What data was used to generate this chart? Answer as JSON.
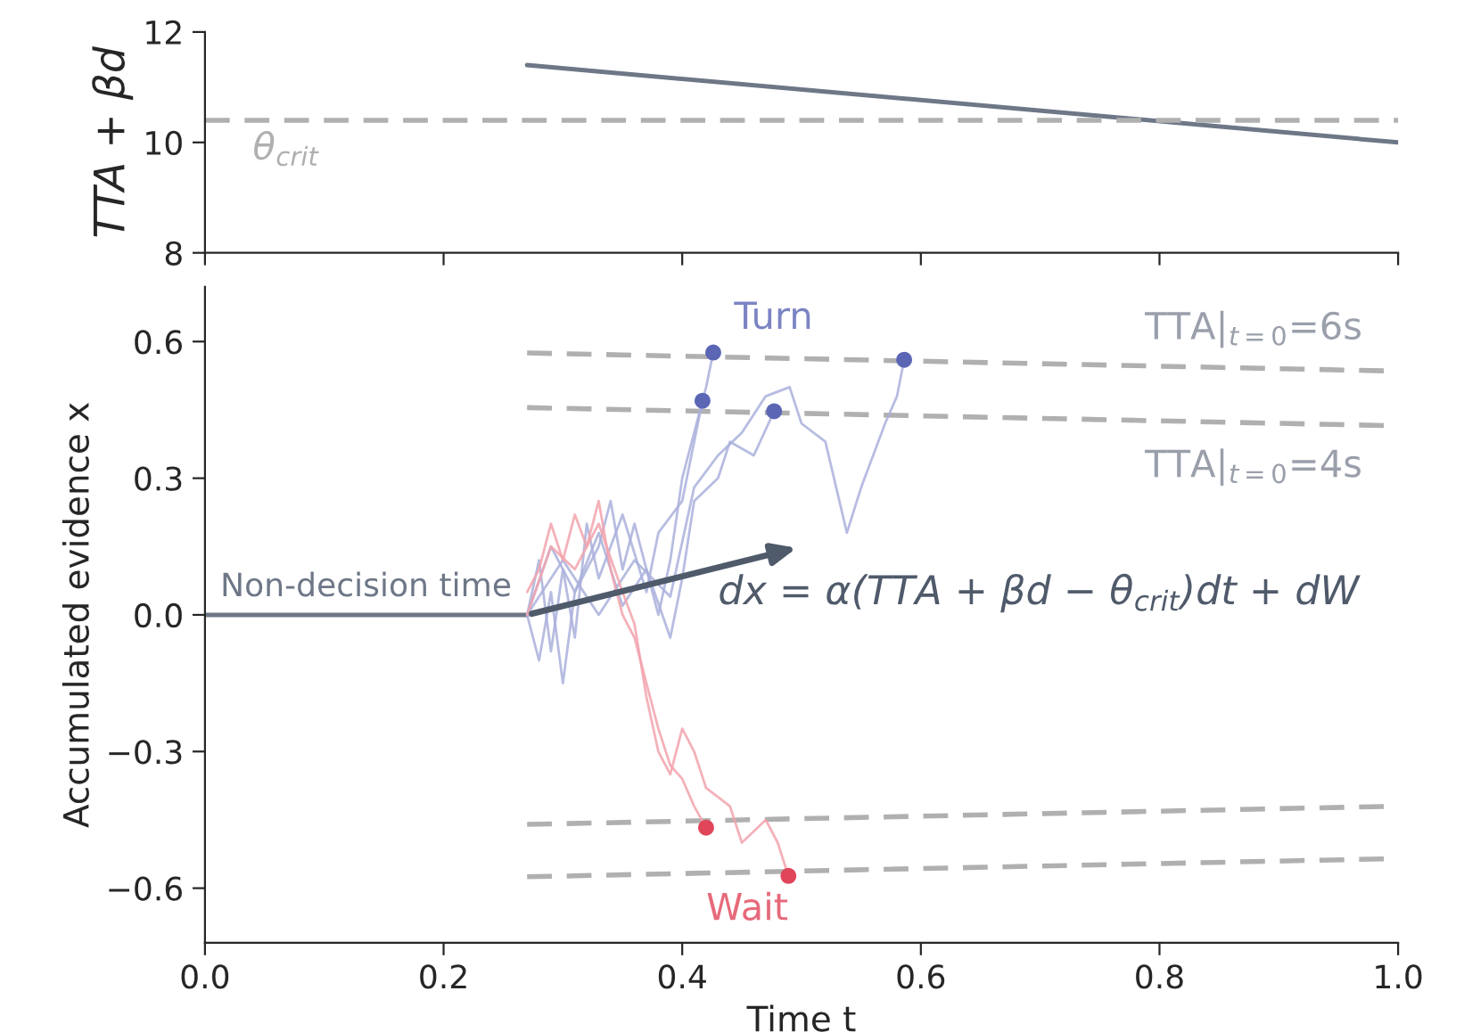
{
  "chart_data": [
    {
      "type": "line",
      "ylabel": "TTA + βd",
      "xlim": [
        0,
        1.0
      ],
      "ylim": [
        8,
        12
      ],
      "xticks": [
        {
          "value": 0,
          "label": null
        },
        {
          "value": 0.2,
          "label": null
        },
        {
          "value": 0.4,
          "label": null
        },
        {
          "value": 0.6,
          "label": null
        },
        {
          "value": 0.8,
          "label": null
        },
        {
          "value": 1.0,
          "label": null
        }
      ],
      "yticks": [
        8,
        10,
        12
      ],
      "tick_labels": "y",
      "grid": false,
      "series": [
        {
          "color": "#6e7787",
          "x": [
            0.27,
            1.0
          ],
          "values": [
            11.4,
            10.0
          ]
        }
      ],
      "ref_lines": [
        {
          "axis": "y",
          "value": 10.4,
          "label": "θ$_{crit}$",
          "color": "#b0b0b0",
          "line_style": "dashed"
        }
      ]
    },
    {
      "type": "line",
      "xlabel": "Time t",
      "ylabel": "Accumulated evidence x",
      "xlim": [
        0,
        1.0
      ],
      "ylim": [
        -0.72,
        0.72
      ],
      "xticks": [
        {
          "value": 0,
          "label": "0.0"
        },
        0.2,
        0.4,
        0.6,
        0.8,
        {
          "value": 1,
          "label": "1.0"
        }
      ],
      "yticks": [
        {
          "value": -0.6,
          "label": "−0.6"
        },
        {
          "value": -0.3,
          "label": "−0.3"
        },
        {
          "value": 0,
          "label": "0.0"
        },
        0.3,
        0.6
      ],
      "grid": false,
      "series": [
        {
          "type": "line",
          "color": "#6e7787",
          "x": [
            0,
            0.27
          ],
          "values": [
            0,
            0
          ]
        },
        {
          "type": "line",
          "line_style": "dashed",
          "color": "#b0b0b0",
          "x": [
            0.27,
            1.0
          ],
          "values": [
            0.575,
            0.535
          ]
        },
        {
          "type": "line",
          "line_style": "dashed",
          "color": "#b0b0b0",
          "x": [
            0.27,
            1.0
          ],
          "values": [
            0.455,
            0.415
          ]
        },
        {
          "type": "line",
          "line_style": "dashed",
          "color": "#b0b0b0",
          "x": [
            0.27,
            1.0
          ],
          "values": [
            -0.46,
            -0.42
          ]
        },
        {
          "type": "line",
          "line_style": "dashed",
          "color": "#b0b0b0",
          "x": [
            0.27,
            1.0
          ],
          "values": [
            -0.575,
            -0.535
          ]
        },
        {
          "type": "line",
          "color": "#aab0dc",
          "x": [
            0.27,
            0.28,
            0.29,
            0.3,
            0.31,
            0.32,
            0.33,
            0.35,
            0.37,
            0.38,
            0.4,
            0.41,
            0.417
          ],
          "values": [
            0.0,
            0.12,
            -0.08,
            0.1,
            -0.05,
            0.2,
            0.08,
            0.22,
            0.05,
            0.18,
            0.25,
            0.38,
            0.47
          ]
        },
        {
          "type": "line",
          "color": "#aab0dc",
          "x": [
            0.27,
            0.28,
            0.29,
            0.3,
            0.31,
            0.33,
            0.34,
            0.35,
            0.36,
            0.38,
            0.39,
            0.4,
            0.41,
            0.42,
            0.426
          ],
          "values": [
            0.0,
            -0.1,
            0.05,
            -0.15,
            0.05,
            0.15,
            0.25,
            0.1,
            0.2,
            0.0,
            0.12,
            0.3,
            0.4,
            0.5,
            0.576
          ]
        },
        {
          "type": "line",
          "color": "#aab0dc",
          "x": [
            0.27,
            0.29,
            0.31,
            0.33,
            0.35,
            0.37,
            0.39,
            0.4,
            0.41,
            0.43,
            0.44,
            0.46,
            0.477
          ],
          "values": [
            0.0,
            0.15,
            0.05,
            0.18,
            0.02,
            0.1,
            -0.05,
            0.08,
            0.25,
            0.3,
            0.38,
            0.35,
            0.447
          ]
        },
        {
          "type": "line",
          "color": "#aab0dc",
          "x": [
            0.27,
            0.3,
            0.33,
            0.36,
            0.39,
            0.41,
            0.43,
            0.45,
            0.47,
            0.49,
            0.5,
            0.52,
            0.538,
            0.55,
            0.56,
            0.57,
            0.58,
            0.586
          ],
          "values": [
            0.0,
            0.12,
            0.0,
            0.12,
            0.04,
            0.28,
            0.35,
            0.4,
            0.48,
            0.5,
            0.42,
            0.38,
            0.18,
            0.28,
            0.35,
            0.42,
            0.48,
            0.56
          ]
        },
        {
          "type": "line",
          "color": "#f2a3ad",
          "x": [
            0.27,
            0.28,
            0.29,
            0.3,
            0.31,
            0.32,
            0.33,
            0.34,
            0.35,
            0.36,
            0.37,
            0.38,
            0.39,
            0.4,
            0.41,
            0.42
          ],
          "values": [
            0.05,
            0.1,
            0.2,
            0.12,
            0.22,
            0.15,
            0.25,
            0.1,
            0.0,
            -0.05,
            -0.15,
            -0.25,
            -0.33,
            -0.36,
            -0.42,
            -0.467
          ]
        },
        {
          "type": "line",
          "color": "#f2a3ad",
          "x": [
            0.27,
            0.29,
            0.31,
            0.33,
            0.35,
            0.36,
            0.37,
            0.38,
            0.39,
            0.4,
            0.41,
            0.42,
            0.44,
            0.45,
            0.47,
            0.48,
            0.489
          ],
          "values": [
            0.0,
            0.15,
            0.1,
            0.2,
            0.05,
            -0.02,
            -0.18,
            -0.3,
            -0.35,
            -0.25,
            -0.3,
            -0.38,
            -0.42,
            -0.5,
            -0.45,
            -0.5,
            -0.573
          ]
        },
        {
          "type": "scatter",
          "name": "Turn",
          "color": "#5b66b5",
          "x": [
            0.417,
            0.426,
            0.477,
            0.586
          ],
          "values": [
            0.47,
            0.576,
            0.447,
            0.56
          ]
        },
        {
          "type": "scatter",
          "name": "Wait",
          "color": "#e0455a",
          "x": [
            0.42,
            0.489
          ],
          "values": [
            -0.467,
            -0.573
          ]
        }
      ],
      "annotations": [
        "Non-decision time",
        "TTA|$_{t=0}$=6s",
        "TTA|$_{t=0}$=4s",
        "dx = α(TTA + βd − θ$_{crit}$)dt + dW"
      ]
    }
  ]
}
